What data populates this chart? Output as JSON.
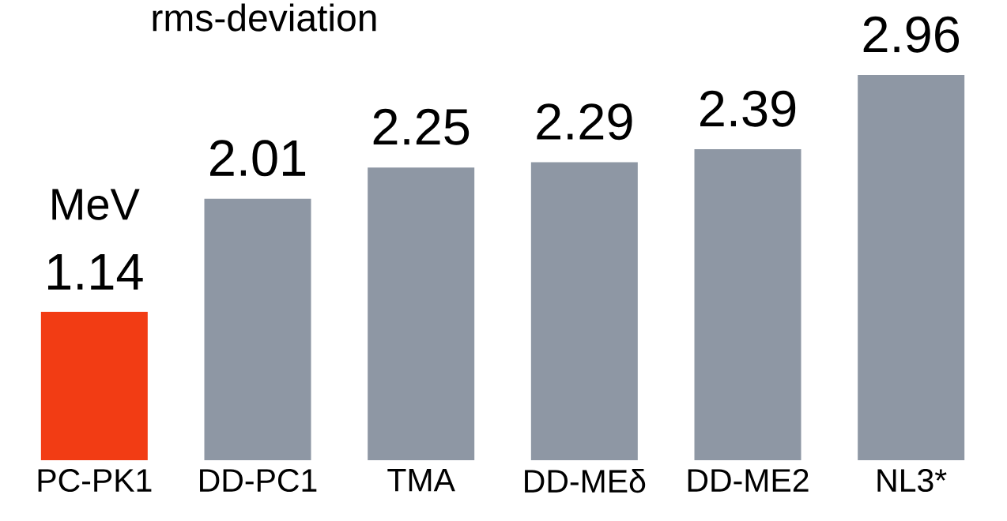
{
  "chart_data": {
    "type": "bar",
    "title": "rms-deviation",
    "ylabel": "MeV",
    "categories": [
      "PC-PK1",
      "DD-PC1",
      "TMA",
      "DD-MEδ",
      "DD-ME2",
      "NL3*"
    ],
    "values": [
      1.14,
      2.01,
      2.25,
      2.29,
      2.39,
      2.96
    ],
    "colors": [
      "#f23c14",
      "#8e97a4",
      "#8e97a4",
      "#8e97a4",
      "#8e97a4",
      "#8e97a4"
    ],
    "data_labels": true
  }
}
